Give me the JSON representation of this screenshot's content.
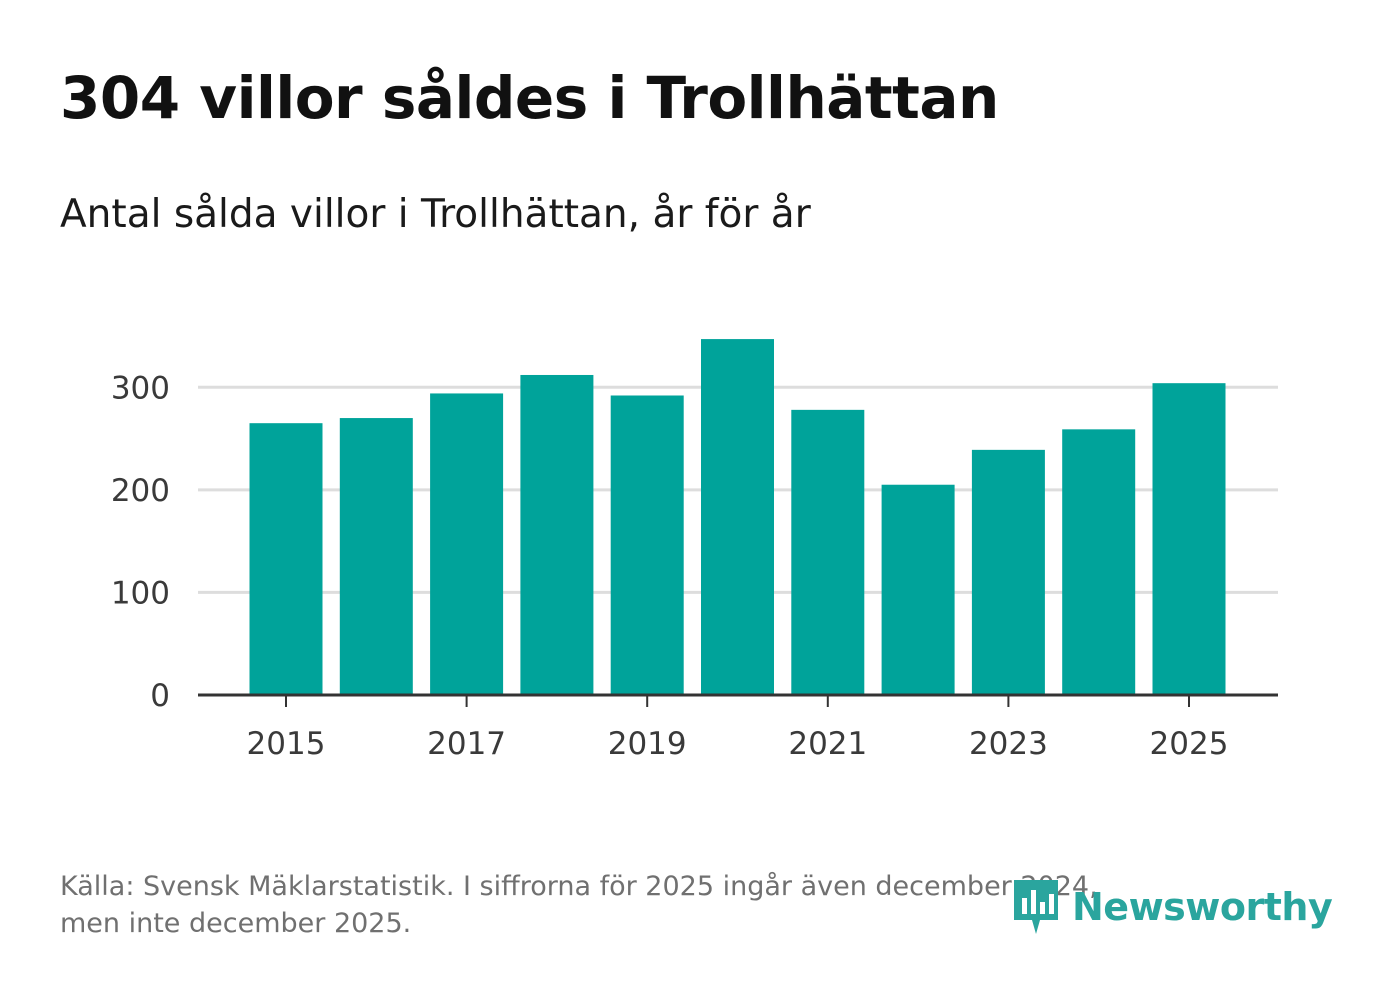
{
  "title": "304 villor såldes i Trollhättan",
  "subtitle": "Antal sålda villor i Trollhättan, år för år",
  "footer": {
    "line1": "Källa: Svensk Mäklarstatistik. I siffrorna för 2025 ingår även december 2024,",
    "line2": "men inte december 2025."
  },
  "logo": {
    "text": "Newsworthy",
    "icon": "newsworthy-logo-icon"
  },
  "colors": {
    "bar": "#00a39a",
    "grid": "#dddddd",
    "axis": "#333333",
    "logo": "#2aa59e"
  },
  "chart_data": {
    "type": "bar",
    "categories": [
      "2015",
      "2016",
      "2017",
      "2018",
      "2019",
      "2020",
      "2021",
      "2022",
      "2023",
      "2024",
      "2025"
    ],
    "values": [
      265,
      270,
      294,
      312,
      292,
      347,
      278,
      205,
      239,
      259,
      304
    ],
    "x_tick_labels": [
      "2015",
      "2017",
      "2019",
      "2021",
      "2023",
      "2025"
    ],
    "y_ticks": [
      0,
      100,
      200,
      300
    ],
    "ylim": [
      0,
      350
    ],
    "grid": true,
    "xlabel": "",
    "ylabel": ""
  }
}
